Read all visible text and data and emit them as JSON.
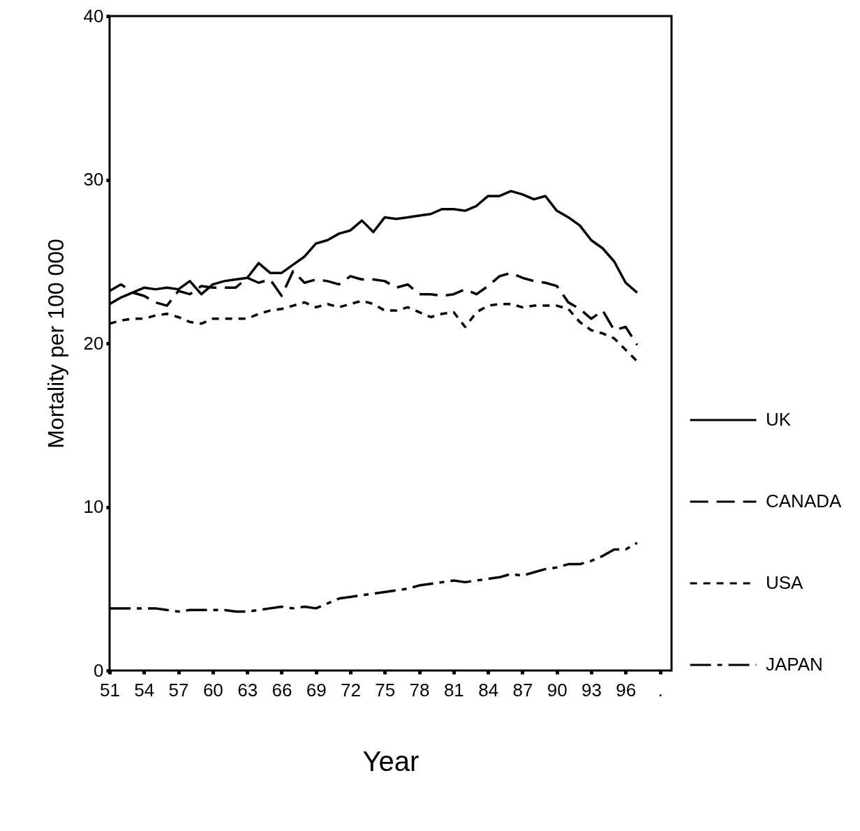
{
  "chart_data": {
    "type": "line",
    "xlabel": "Year",
    "ylabel": "Mortality per 100 000",
    "x": [
      51,
      52,
      53,
      54,
      55,
      56,
      57,
      58,
      59,
      60,
      61,
      62,
      63,
      64,
      65,
      66,
      67,
      68,
      69,
      70,
      71,
      72,
      73,
      74,
      75,
      76,
      77,
      78,
      79,
      80,
      81,
      82,
      83,
      84,
      85,
      86,
      87,
      88,
      89,
      90,
      91,
      92,
      93,
      94,
      95,
      96,
      97
    ],
    "series": [
      {
        "name": "UK",
        "color": "#000000",
        "line_style": "solid",
        "values": [
          22.4,
          22.8,
          23.1,
          23.4,
          23.3,
          23.4,
          23.3,
          23.8,
          23.0,
          23.6,
          23.8,
          23.9,
          24.0,
          24.9,
          24.3,
          24.3,
          24.8,
          25.3,
          26.1,
          26.3,
          26.7,
          26.9,
          27.5,
          26.8,
          27.7,
          27.6,
          27.7,
          27.8,
          27.9,
          28.2,
          28.2,
          28.1,
          28.4,
          29.0,
          29.0,
          29.3,
          29.1,
          28.8,
          29.0,
          28.1,
          27.7,
          27.2,
          26.3,
          25.8,
          25.0,
          23.7,
          23.1
        ]
      },
      {
        "name": "CANADA",
        "color": "#000000",
        "line_style": "dashed",
        "values": [
          23.2,
          23.6,
          23.1,
          22.9,
          22.5,
          22.3,
          23.2,
          23.0,
          23.5,
          23.4,
          23.4,
          23.4,
          24.0,
          23.7,
          23.9,
          22.9,
          24.4,
          23.7,
          23.9,
          23.8,
          23.6,
          24.1,
          23.9,
          23.9,
          23.8,
          23.4,
          23.6,
          23.0,
          23.0,
          22.9,
          23.0,
          23.3,
          23.0,
          23.5,
          24.1,
          24.3,
          24.0,
          23.8,
          23.7,
          23.5,
          22.5,
          22.1,
          21.5,
          22.0,
          20.8,
          21.0,
          19.9
        ]
      },
      {
        "name": "USA",
        "color": "#000000",
        "line_style": "dotted",
        "values": [
          21.2,
          21.4,
          21.5,
          21.5,
          21.7,
          21.8,
          21.6,
          21.3,
          21.2,
          21.5,
          21.5,
          21.5,
          21.5,
          21.8,
          22.0,
          22.1,
          22.3,
          22.5,
          22.2,
          22.4,
          22.2,
          22.4,
          22.6,
          22.4,
          22.0,
          22.0,
          22.2,
          21.9,
          21.6,
          21.8,
          21.9,
          21.0,
          21.9,
          22.3,
          22.4,
          22.4,
          22.2,
          22.3,
          22.3,
          22.3,
          22.1,
          21.3,
          20.8,
          20.6,
          20.3,
          19.6,
          18.9
        ]
      },
      {
        "name": "JAPAN",
        "color": "#000000",
        "line_style": "dashdot",
        "values": [
          3.8,
          3.8,
          3.8,
          3.8,
          3.8,
          3.7,
          3.6,
          3.7,
          3.7,
          3.7,
          3.7,
          3.6,
          3.6,
          3.7,
          3.8,
          3.9,
          3.8,
          3.9,
          3.8,
          4.1,
          4.4,
          4.5,
          4.6,
          4.7,
          4.8,
          4.9,
          5.0,
          5.2,
          5.3,
          5.4,
          5.5,
          5.4,
          5.5,
          5.6,
          5.7,
          5.9,
          5.8,
          6.0,
          6.2,
          6.3,
          6.5,
          6.5,
          6.7,
          7.0,
          7.4,
          7.4,
          7.8
        ]
      }
    ],
    "xlim": [
      51,
      100
    ],
    "xticks": [
      51,
      54,
      57,
      60,
      63,
      66,
      69,
      72,
      75,
      78,
      81,
      84,
      87,
      90,
      93,
      96,
      {
        "value": 99,
        "label": "."
      }
    ],
    "ylim": [
      0,
      40
    ],
    "yticks": [
      0,
      10,
      20,
      30,
      40
    ],
    "grid": false,
    "legend": "right",
    "marker": "none"
  }
}
